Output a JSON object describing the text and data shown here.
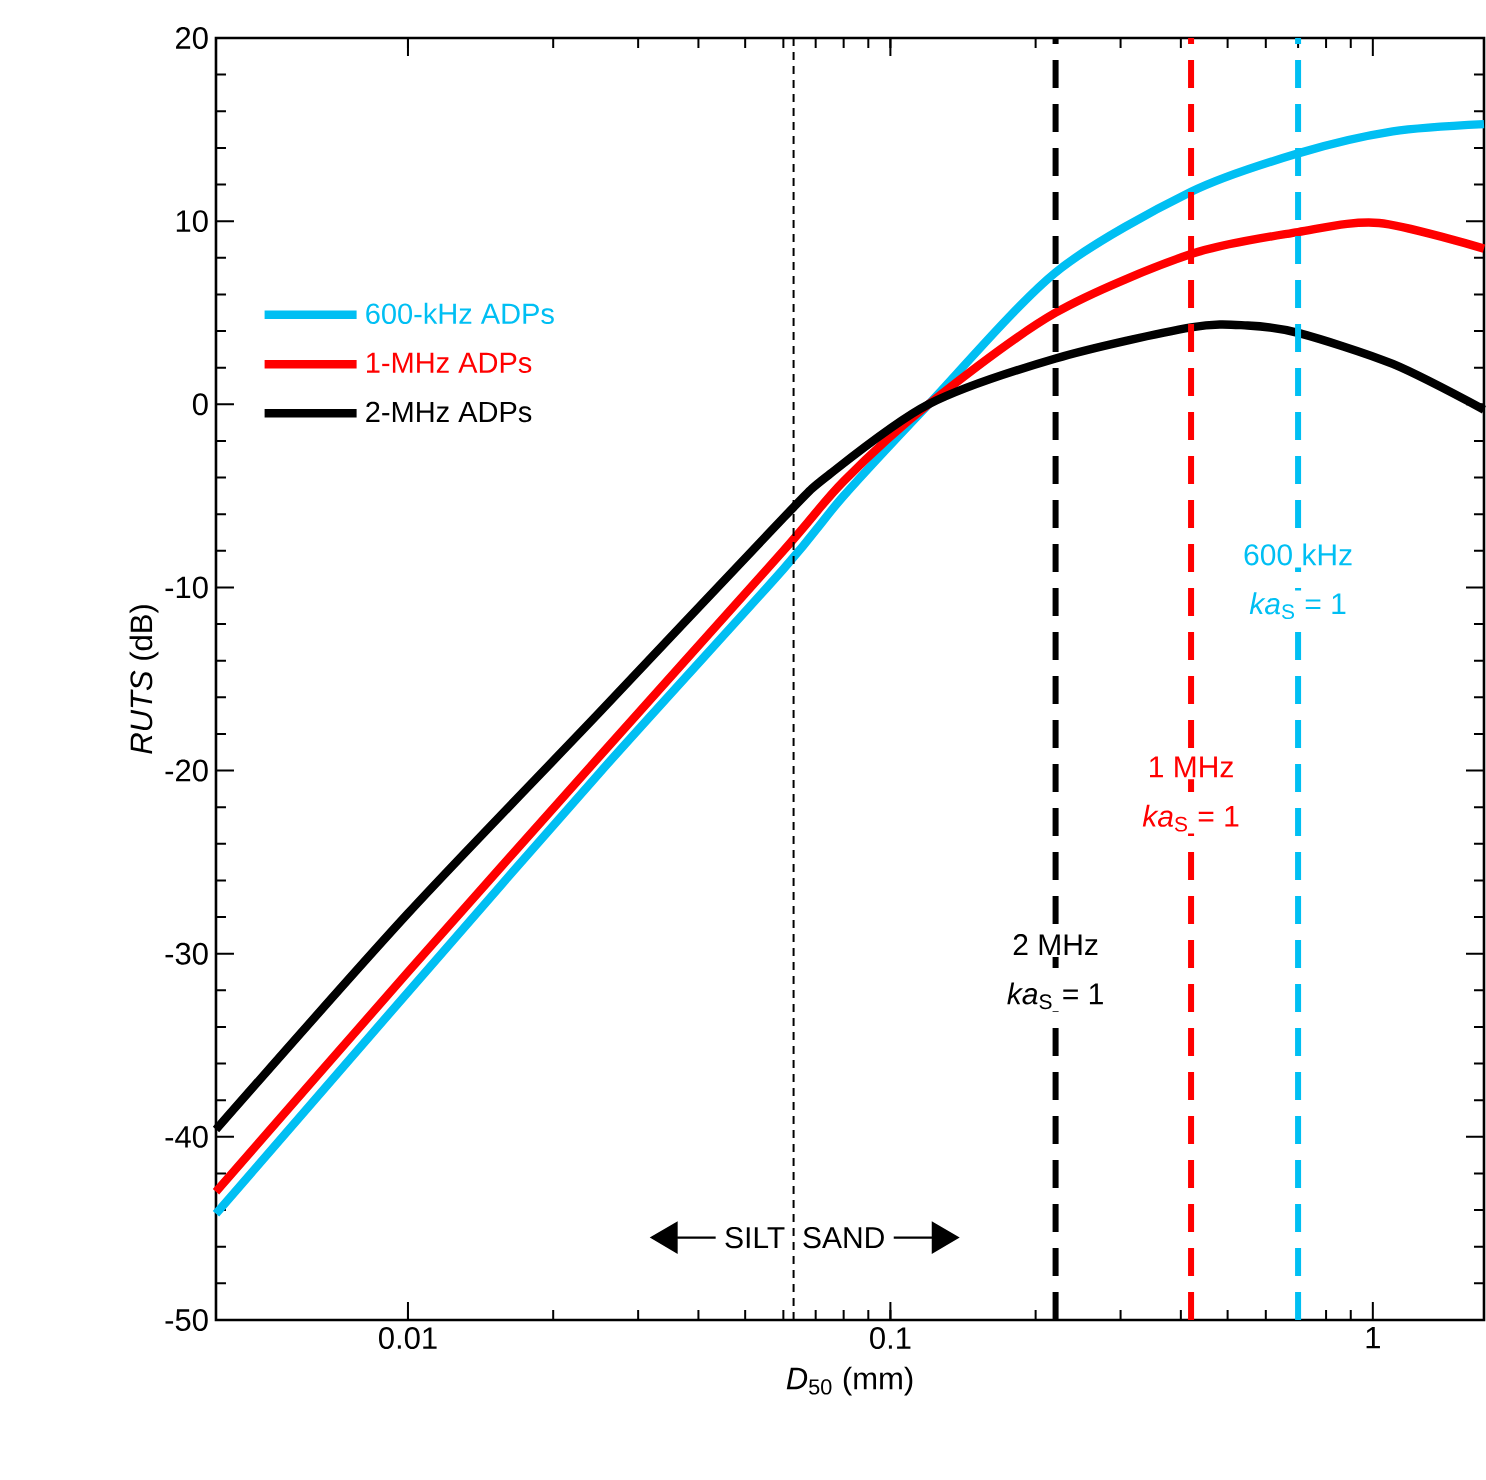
{
  "chart_data": {
    "type": "line",
    "xlabel": "*D*$_{50}$ (mm)",
    "ylabel": "*RUTS* (dB)",
    "log": "x",
    "xlim": [
      0.004,
      1.7
    ],
    "ylim": [
      -50,
      20
    ],
    "xticks": [
      0.01,
      0.1,
      1
    ],
    "yticks": [
      -50,
      -40,
      -30,
      -20,
      -10,
      0,
      10,
      20
    ],
    "legend": "top left",
    "series": [
      {
        "name": "600-kHz ADPs",
        "color": "#00bff3",
        "x": [
          0.004,
          0.01,
          0.025,
          0.06,
          0.08,
          0.12,
          0.22,
          0.42,
          0.7,
          1.1,
          1.7
        ],
        "values": [
          -44.2,
          -32.1,
          -20.1,
          -9,
          -5,
          0,
          7.2,
          11.6,
          13.7,
          14.9,
          15.3
        ]
      },
      {
        "name": "1-MHz ADPs",
        "color": "#ff0000",
        "x": [
          0.004,
          0.01,
          0.025,
          0.06,
          0.08,
          0.12,
          0.22,
          0.42,
          0.7,
          1.03,
          1.7
        ],
        "values": [
          -43,
          -31,
          -19.2,
          -8,
          -4.2,
          0,
          5,
          8.2,
          9.4,
          9.9,
          8.5
        ]
      },
      {
        "name": "2-MHz ADPs",
        "color": "#000000",
        "x": [
          0.004,
          0.01,
          0.025,
          0.06,
          0.075,
          0.12,
          0.22,
          0.42,
          0.55,
          0.7,
          1.1,
          1.7
        ],
        "values": [
          -39.6,
          -27.8,
          -16.8,
          -6.2,
          -3.8,
          0,
          2.5,
          4.2,
          4.3,
          3.9,
          2.2,
          -0.3
        ]
      }
    ],
    "ref_lines": [
      {
        "axis": "x",
        "value": 0.063,
        "color": "#000000",
        "line_style": "dotted"
      },
      {
        "axis": "x",
        "value": 0.22,
        "color": "#000000",
        "line_style": "dashed"
      },
      {
        "axis": "x",
        "value": 0.42,
        "color": "#ff0000",
        "line_style": "dashed"
      },
      {
        "axis": "x",
        "value": 0.7,
        "color": "#00bff3",
        "line_style": "dashed"
      }
    ],
    "annotations": [
      {
        "text": "2 MHz",
        "x": 0.22,
        "y": -29.5
      },
      {
        "text": "*ka*$_{S}$ = 1",
        "x": 0.22,
        "y": -32.3
      },
      {
        "text": "1 MHz",
        "x": 0.42,
        "y": -19.8
      },
      {
        "text": "*ka*$_{S}$ = 1",
        "x": 0.42,
        "y": -22.6
      },
      {
        "text": "600 kHz",
        "x": 0.7,
        "y": -8.2
      },
      {
        "text": "*ka*$_{S}$ = 1",
        "x": 0.7,
        "y": -11
      },
      "SILT",
      "SAND"
    ]
  }
}
